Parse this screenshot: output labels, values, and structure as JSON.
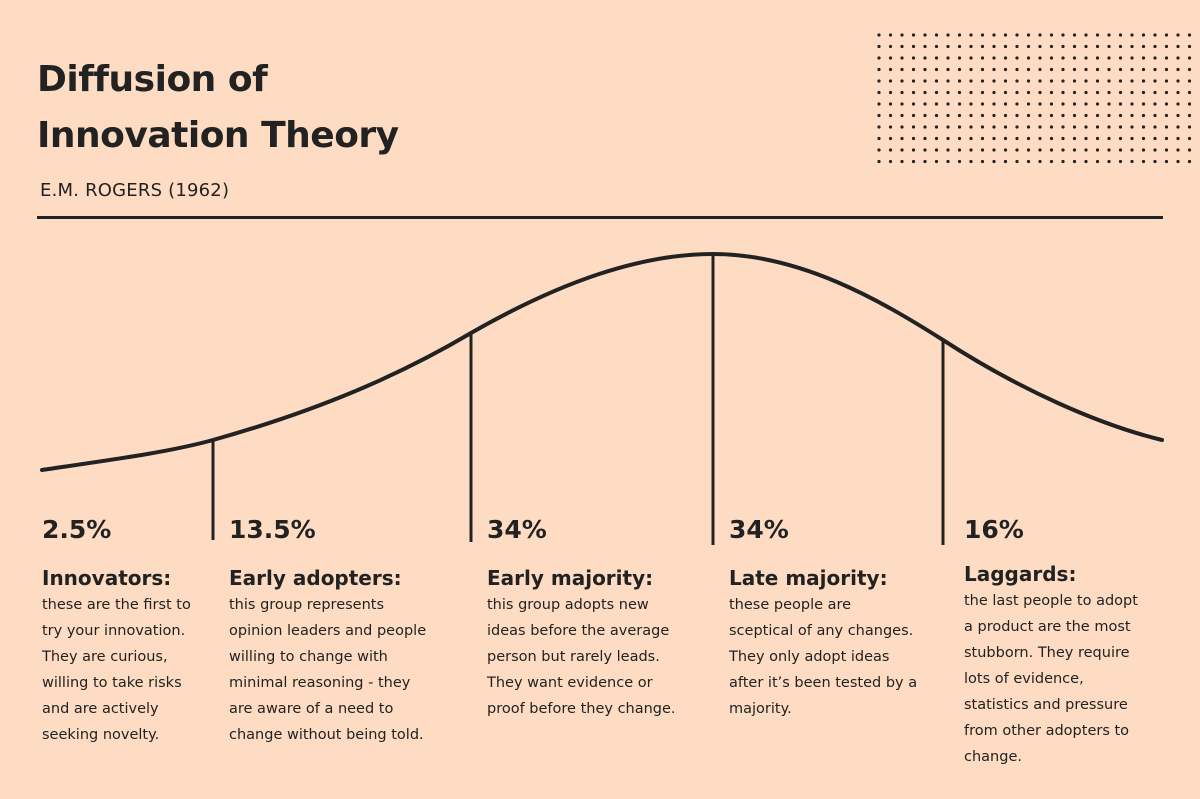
{
  "title_lines": [
    "Diffusion of",
    "Innovation Theory"
  ],
  "subtitle": "E.M. ROGERS (1962)",
  "colors": {
    "background": "#fddcc3",
    "ink": "#222222"
  },
  "segments": [
    {
      "percent": "2.5%",
      "heading": "Innovators:",
      "lines": [
        "these are the first to",
        "try your innovation.",
        "They are curious,",
        "willing to take risks",
        "and are actively",
        "seeking novelty."
      ]
    },
    {
      "percent": "13.5%",
      "heading": "Early adopters:",
      "lines": [
        "this group represents",
        "opinion leaders and people",
        "willing to change with",
        "minimal reasoning - they",
        "are aware of a need to",
        "change without being told."
      ]
    },
    {
      "percent": "34%",
      "heading": "Early majority:",
      "lines": [
        "this group adopts new",
        "ideas before the average",
        "person but rarely leads.",
        "They want evidence or",
        "proof before they change."
      ]
    },
    {
      "percent": "34%",
      "heading": "Late majority:",
      "lines": [
        "these people are",
        "sceptical of any changes.",
        "They only adopt ideas",
        "after it’s been tested by a",
        "majority."
      ]
    },
    {
      "percent": "16%",
      "heading": "Laggards:",
      "lines": [
        "the last people to adopt",
        "a product are the most",
        "stubborn. They require",
        "lots of evidence,",
        "statistics and pressure",
        "from other adopters to",
        "change."
      ]
    }
  ]
}
